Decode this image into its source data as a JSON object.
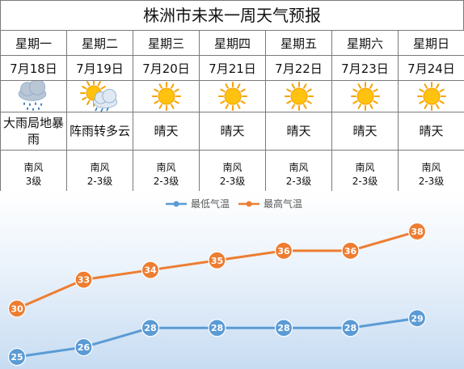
{
  "title": "株洲市未来一周天气预报",
  "days": [
    {
      "weekday": "星期一",
      "date": "7月18日",
      "icon": "heavy-rain-icon",
      "condition": "大雨局地暴雨",
      "wind_dir": "南风",
      "wind_level": "3级"
    },
    {
      "weekday": "星期二",
      "date": "7月19日",
      "icon": "sun-cloud-rain-icon",
      "condition": "阵雨转多云",
      "wind_dir": "南风",
      "wind_level": "2-3级"
    },
    {
      "weekday": "星期三",
      "date": "7月20日",
      "icon": "sun-icon",
      "condition": "晴天",
      "wind_dir": "南风",
      "wind_level": "2-3级"
    },
    {
      "weekday": "星期四",
      "date": "7月21日",
      "icon": "sun-icon",
      "condition": "晴天",
      "wind_dir": "南风",
      "wind_level": "2-3级"
    },
    {
      "weekday": "星期五",
      "date": "7月22日",
      "icon": "sun-icon",
      "condition": "晴天",
      "wind_dir": "南风",
      "wind_level": "2-3级"
    },
    {
      "weekday": "星期六",
      "date": "7月23日",
      "icon": "sun-icon",
      "condition": "晴天",
      "wind_dir": "南风",
      "wind_level": "2-3级"
    },
    {
      "weekday": "星期日",
      "date": "7月24日",
      "icon": "sun-icon",
      "condition": "晴天",
      "wind_dir": "南风",
      "wind_level": "2-3级"
    }
  ],
  "colors": {
    "low": "#5b9bd5",
    "high": "#ed7d31"
  },
  "chart_data": {
    "type": "line",
    "categories": [
      "7月18日",
      "7月19日",
      "7月20日",
      "7月21日",
      "7月22日",
      "7月23日",
      "7月24日"
    ],
    "series": [
      {
        "name": "最低气温",
        "values": [
          25,
          26,
          28,
          28,
          28,
          28,
          29
        ]
      },
      {
        "name": "最高气温",
        "values": [
          30,
          33,
          34,
          35,
          36,
          36,
          38
        ]
      }
    ],
    "legend": "top",
    "data_labels": true,
    "axes_visible": false,
    "grid": false
  }
}
